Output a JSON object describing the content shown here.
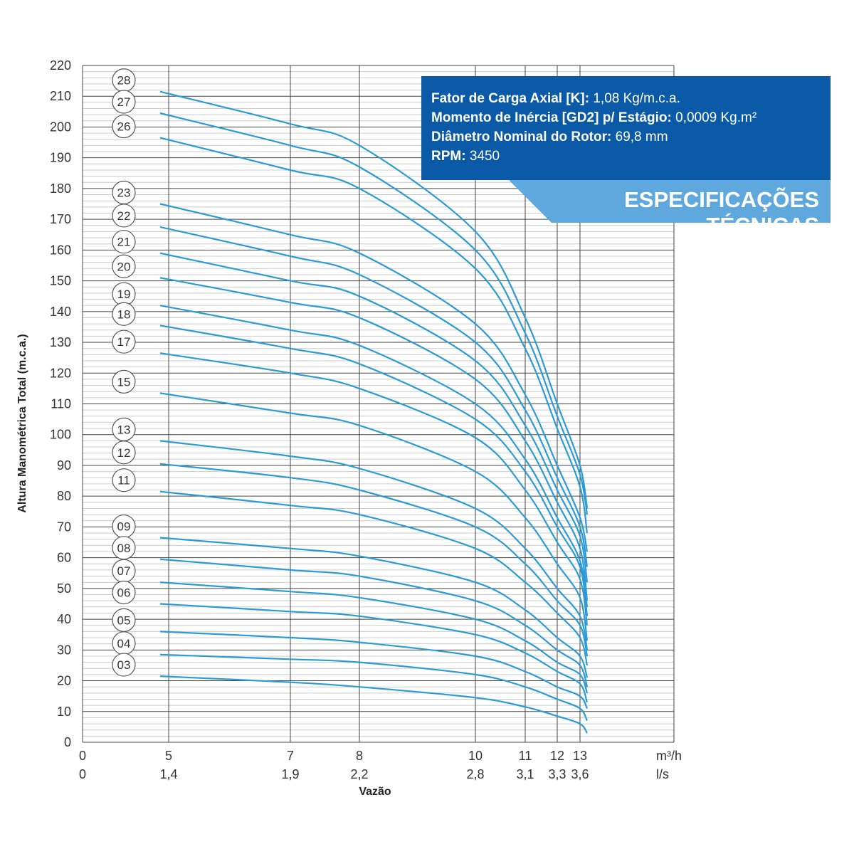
{
  "specs": {
    "lines": [
      {
        "label": "Fator de Carga Axial [K]:",
        "value": "1,08 Kg/m.c.a."
      },
      {
        "label": "Momento de Inércia [GD2] p/ Estágio:",
        "value": "0,0009 Kg.m²"
      },
      {
        "label": "Diâmetro Nominal do Rotor:",
        "value": "69,8 mm"
      },
      {
        "label": "RPM:",
        "value": "3450"
      }
    ],
    "banner": "ESPECIFICAÇÕES TÉCNICAS"
  },
  "colors": {
    "curve": "#2a9bd6",
    "grid": "#444444",
    "minor_grid": "#cccccc",
    "box": "#0a5aa8",
    "banner": "#5fa8de"
  },
  "chart_data": {
    "type": "line",
    "xlabel": "Vazão",
    "ylabel": "Altura Manométrica Total (m.c.a.)",
    "x_unit_primary": "m³/h",
    "x_unit_secondary": "l/s",
    "xlim": [
      0,
      15
    ],
    "ylim": [
      0,
      220
    ],
    "y_ticks": [
      0,
      10,
      20,
      30,
      40,
      50,
      60,
      70,
      80,
      90,
      100,
      110,
      120,
      130,
      140,
      150,
      160,
      170,
      180,
      190,
      200,
      210,
      220
    ],
    "x_ticks": [
      {
        "m3h": 0,
        "m3h_label": "0",
        "ls_label": "0"
      },
      {
        "m3h": 5,
        "m3h_label": "5",
        "ls_label": "1,4"
      },
      {
        "m3h": 7,
        "m3h_label": "7",
        "ls_label": "1,9"
      },
      {
        "m3h": 8,
        "m3h_label": "8",
        "ls_label": "2,2"
      },
      {
        "m3h": 10,
        "m3h_label": "10",
        "ls_label": "2,8"
      },
      {
        "m3h": 11,
        "m3h_label": "11",
        "ls_label": "3,1"
      },
      {
        "m3h": 12,
        "m3h_label": "12",
        "ls_label": "3,3"
      },
      {
        "m3h": 13,
        "m3h_label": "13",
        "ls_label": "3,6"
      }
    ],
    "grid": true,
    "curve_x": [
      4.5,
      7,
      8,
      10,
      11,
      12,
      13,
      13.3
    ],
    "series": [
      {
        "name": "28",
        "values": [
          211.5,
          201,
          194,
          166,
          138,
          110,
          90,
          76
        ]
      },
      {
        "name": "27",
        "values": [
          204.5,
          194,
          187,
          160,
          133,
          106,
          87,
          74
        ]
      },
      {
        "name": "26",
        "values": [
          196.5,
          186,
          180,
          154,
          128,
          102,
          83,
          68
        ]
      },
      {
        "name": "23",
        "values": [
          175,
          165,
          159,
          136,
          113,
          90,
          73,
          62
        ]
      },
      {
        "name": "22",
        "values": [
          167.5,
          158,
          152,
          130,
          108,
          86,
          70,
          57
        ]
      },
      {
        "name": "21",
        "values": [
          159,
          150,
          145,
          124,
          103,
          82,
          67,
          52
        ]
      },
      {
        "name": "20",
        "values": [
          151,
          143,
          138,
          118,
          98,
          78,
          63,
          46
        ]
      },
      {
        "name": "19",
        "values": [
          142,
          134,
          129,
          110,
          92,
          73,
          59,
          44
        ]
      },
      {
        "name": "18",
        "values": [
          135.5,
          128,
          123,
          105,
          88,
          70,
          57,
          41
        ]
      },
      {
        "name": "17",
        "values": [
          126.5,
          120,
          115,
          99,
          82,
          65,
          53,
          38
        ]
      },
      {
        "name": "15",
        "values": [
          113.5,
          107,
          103,
          88,
          73,
          58,
          47,
          33
        ]
      },
      {
        "name": "13",
        "values": [
          98,
          93,
          89,
          76,
          63,
          50,
          41,
          30
        ]
      },
      {
        "name": "12",
        "values": [
          90.5,
          86,
          82,
          70,
          58,
          46,
          38,
          28
        ]
      },
      {
        "name": "11",
        "values": [
          81.5,
          77,
          74,
          63,
          52,
          42,
          34,
          25
        ]
      },
      {
        "name": "09",
        "values": [
          66.5,
          63,
          60.5,
          52,
          43,
          34,
          28,
          21
        ]
      },
      {
        "name": "08",
        "values": [
          59.5,
          56,
          54,
          46,
          38,
          30,
          25,
          18
        ]
      },
      {
        "name": "07",
        "values": [
          52,
          49,
          47,
          40,
          33,
          26,
          22,
          16
        ]
      },
      {
        "name": "06",
        "values": [
          45,
          42.5,
          41,
          35,
          29,
          23,
          19,
          13
        ]
      },
      {
        "name": "05",
        "values": [
          36,
          34,
          32.5,
          28,
          23,
          18,
          15,
          11
        ]
      },
      {
        "name": "04",
        "values": [
          28.5,
          27,
          26,
          22,
          18,
          14,
          11,
          7
        ]
      },
      {
        "name": "03",
        "values": [
          21.5,
          19.5,
          18,
          14.5,
          11.5,
          8.5,
          6,
          3
        ]
      }
    ]
  }
}
